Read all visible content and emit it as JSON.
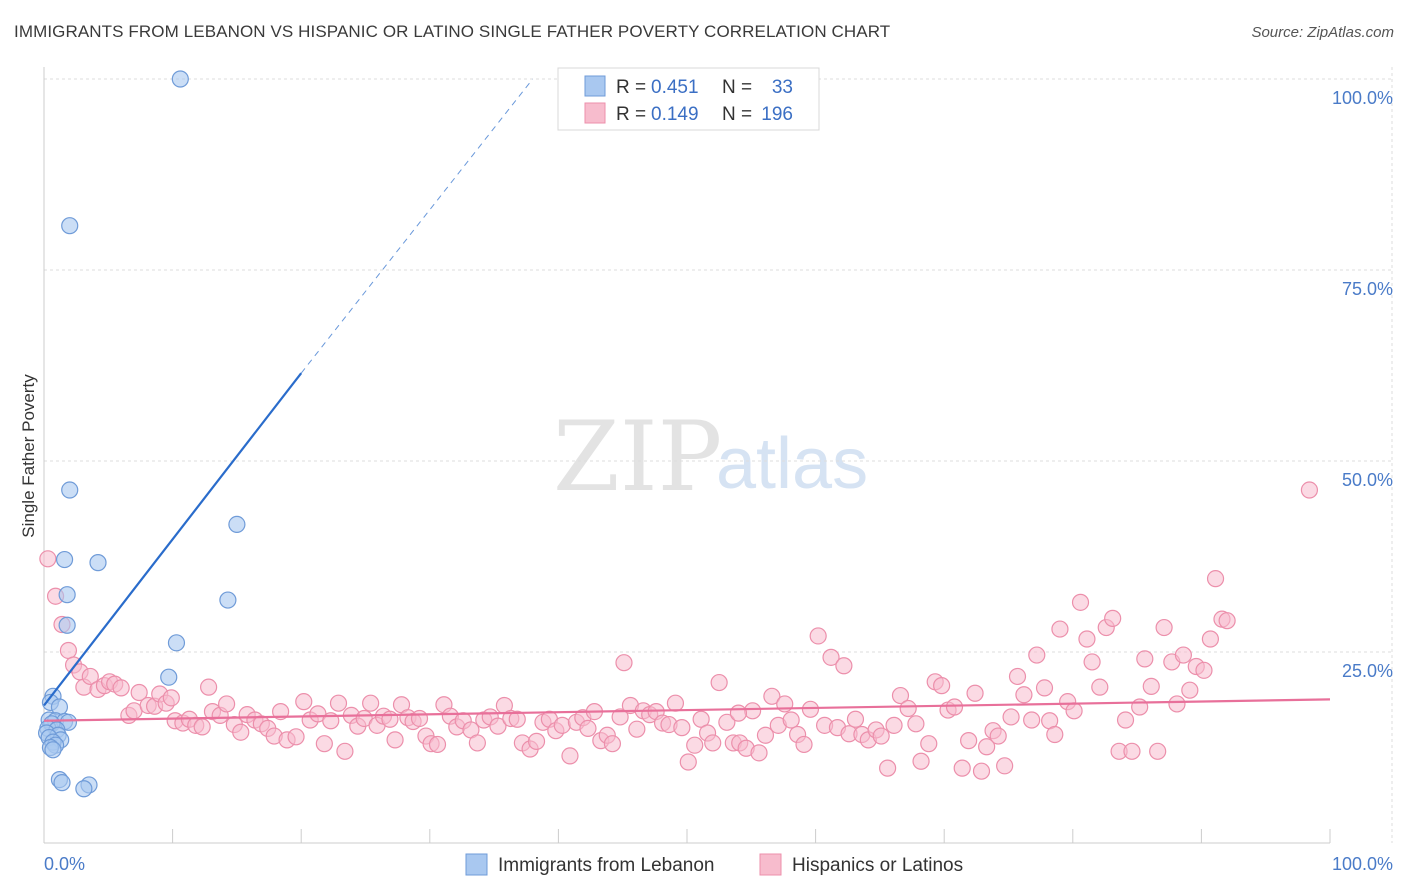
{
  "title": "IMMIGRANTS FROM LEBANON VS HISPANIC OR LATINO SINGLE FATHER POVERTY CORRELATION CHART",
  "source": "Source: ZipAtlas.com",
  "watermark": {
    "zip": "ZIP",
    "atlas": "atlas"
  },
  "colors": {
    "blue_fill": "#a9c8f0",
    "blue_stroke": "#6f9bd8",
    "blue_line": "#2a6ccb",
    "pink_fill": "#f7bccd",
    "pink_stroke": "#ec8fab",
    "pink_line": "#e8709a",
    "grid": "#dddddd",
    "axis_label": "#4a7bc8"
  },
  "legend": {
    "rows": [
      {
        "r_label": "R =",
        "r_value": "0.451",
        "n_label": "N =",
        "n_value": "33"
      },
      {
        "r_label": "R =",
        "r_value": "0.149",
        "n_label": "N =",
        "n_value": "196"
      }
    ]
  },
  "chart_data": {
    "type": "scatter",
    "title": "IMMIGRANTS FROM LEBANON VS HISPANIC OR LATINO SINGLE FATHER POVERTY CORRELATION CHART",
    "xlabel": "",
    "ylabel": "Single Father Poverty",
    "xlim": [
      0,
      100
    ],
    "ylim": [
      0,
      100
    ],
    "x_tick_labels": [
      "0.0%",
      "100.0%"
    ],
    "y_ticks": [
      25,
      50,
      75,
      100
    ],
    "y_tick_labels": [
      "25.0%",
      "50.0%",
      "75.0%",
      "100.0%"
    ],
    "grid": true,
    "series": [
      {
        "name": "Immigrants from Lebanon",
        "color": "blue",
        "r": 0.451,
        "n": 33,
        "trend": {
          "x0": 0.0,
          "y0": 18.0,
          "x1": 20.0,
          "y1": 61.5,
          "dash_to_x": 38.0,
          "dash_to_y": 100.0
        },
        "points": [
          [
            10.6,
            100.0
          ],
          [
            2.0,
            80.8
          ],
          [
            2.0,
            46.2
          ],
          [
            15.0,
            41.7
          ],
          [
            1.6,
            37.1
          ],
          [
            4.2,
            36.7
          ],
          [
            1.8,
            32.5
          ],
          [
            14.3,
            31.8
          ],
          [
            1.8,
            28.5
          ],
          [
            10.3,
            26.2
          ],
          [
            9.7,
            21.7
          ],
          [
            0.7,
            19.2
          ],
          [
            0.5,
            18.4
          ],
          [
            1.2,
            17.8
          ],
          [
            0.4,
            16.1
          ],
          [
            0.9,
            16.0
          ],
          [
            1.6,
            15.9
          ],
          [
            1.9,
            15.8
          ],
          [
            0.6,
            15.6
          ],
          [
            0.3,
            15.0
          ],
          [
            1.0,
            14.8
          ],
          [
            0.2,
            14.4
          ],
          [
            1.1,
            14.1
          ],
          [
            0.4,
            13.8
          ],
          [
            1.3,
            13.5
          ],
          [
            0.7,
            13.2
          ],
          [
            0.9,
            12.8
          ],
          [
            0.5,
            12.5
          ],
          [
            0.7,
            12.2
          ],
          [
            1.2,
            8.3
          ],
          [
            1.4,
            7.9
          ],
          [
            3.5,
            7.6
          ],
          [
            3.1,
            7.1
          ]
        ]
      },
      {
        "name": "Hispanics or Latinos",
        "color": "pink",
        "r": 0.149,
        "n": 196,
        "trend": {
          "x0": 0.0,
          "y0": 16.0,
          "x1": 100.0,
          "y1": 18.8
        },
        "points": [
          [
            0.3,
            37.2
          ],
          [
            0.9,
            32.3
          ],
          [
            1.4,
            28.6
          ],
          [
            1.9,
            25.2
          ],
          [
            2.3,
            23.3
          ],
          [
            2.8,
            22.4
          ],
          [
            3.1,
            20.4
          ],
          [
            3.6,
            21.8
          ],
          [
            4.2,
            20.1
          ],
          [
            4.7,
            20.6
          ],
          [
            5.1,
            21.1
          ],
          [
            5.5,
            20.8
          ],
          [
            6.0,
            20.3
          ],
          [
            6.6,
            16.7
          ],
          [
            7.0,
            17.3
          ],
          [
            7.4,
            19.7
          ],
          [
            8.1,
            18.0
          ],
          [
            8.6,
            17.9
          ],
          [
            9.0,
            19.5
          ],
          [
            9.5,
            18.3
          ],
          [
            9.9,
            19.0
          ],
          [
            10.2,
            16.0
          ],
          [
            10.8,
            15.7
          ],
          [
            11.3,
            16.2
          ],
          [
            11.8,
            15.4
          ],
          [
            12.3,
            15.2
          ],
          [
            12.8,
            20.4
          ],
          [
            13.1,
            17.2
          ],
          [
            13.7,
            16.7
          ],
          [
            14.2,
            18.2
          ],
          [
            14.8,
            15.5
          ],
          [
            15.3,
            14.5
          ],
          [
            15.8,
            16.8
          ],
          [
            16.4,
            16.1
          ],
          [
            16.9,
            15.6
          ],
          [
            17.4,
            15.0
          ],
          [
            17.9,
            14.0
          ],
          [
            18.4,
            17.2
          ],
          [
            18.9,
            13.5
          ],
          [
            19.6,
            13.9
          ],
          [
            20.2,
            18.5
          ],
          [
            20.7,
            16.1
          ],
          [
            21.3,
            16.9
          ],
          [
            21.8,
            13.0
          ],
          [
            22.3,
            16.0
          ],
          [
            22.9,
            18.3
          ],
          [
            23.4,
            12.0
          ],
          [
            23.9,
            16.7
          ],
          [
            24.4,
            15.3
          ],
          [
            24.9,
            16.3
          ],
          [
            25.4,
            18.3
          ],
          [
            25.9,
            15.4
          ],
          [
            26.4,
            16.6
          ],
          [
            26.9,
            16.2
          ],
          [
            27.3,
            13.5
          ],
          [
            27.8,
            18.1
          ],
          [
            28.3,
            16.4
          ],
          [
            28.7,
            15.9
          ],
          [
            29.2,
            16.3
          ],
          [
            29.7,
            14.0
          ],
          [
            30.1,
            13.0
          ],
          [
            30.6,
            12.9
          ],
          [
            31.1,
            18.1
          ],
          [
            31.6,
            16.6
          ],
          [
            32.1,
            15.2
          ],
          [
            32.6,
            16.0
          ],
          [
            33.2,
            14.8
          ],
          [
            33.7,
            13.1
          ],
          [
            34.2,
            16.1
          ],
          [
            34.7,
            16.5
          ],
          [
            35.3,
            15.3
          ],
          [
            35.8,
            18.0
          ],
          [
            36.3,
            16.3
          ],
          [
            36.8,
            16.2
          ],
          [
            37.2,
            13.1
          ],
          [
            37.8,
            12.3
          ],
          [
            38.3,
            13.3
          ],
          [
            38.8,
            15.8
          ],
          [
            39.3,
            16.2
          ],
          [
            39.8,
            14.7
          ],
          [
            40.3,
            15.4
          ],
          [
            40.9,
            11.4
          ],
          [
            41.4,
            15.8
          ],
          [
            41.9,
            16.4
          ],
          [
            42.3,
            15.0
          ],
          [
            42.8,
            17.2
          ],
          [
            43.3,
            13.4
          ],
          [
            43.8,
            14.1
          ],
          [
            44.2,
            13.0
          ],
          [
            44.8,
            16.5
          ],
          [
            45.1,
            23.6
          ],
          [
            45.6,
            18.0
          ],
          [
            46.1,
            14.9
          ],
          [
            46.6,
            17.3
          ],
          [
            47.1,
            16.8
          ],
          [
            47.6,
            17.2
          ],
          [
            48.1,
            15.7
          ],
          [
            48.6,
            15.5
          ],
          [
            49.1,
            18.3
          ],
          [
            49.6,
            15.1
          ],
          [
            50.1,
            10.6
          ],
          [
            50.6,
            12.8
          ],
          [
            51.1,
            16.2
          ],
          [
            51.6,
            14.4
          ],
          [
            52.0,
            13.1
          ],
          [
            52.5,
            21.0
          ],
          [
            53.1,
            15.8
          ],
          [
            53.6,
            13.1
          ],
          [
            54.1,
            13.1
          ],
          [
            54.6,
            12.4
          ],
          [
            55.1,
            17.3
          ],
          [
            55.6,
            11.8
          ],
          [
            56.1,
            14.1
          ],
          [
            56.6,
            19.2
          ],
          [
            57.1,
            15.4
          ],
          [
            57.6,
            18.2
          ],
          [
            58.1,
            16.1
          ],
          [
            58.6,
            14.2
          ],
          [
            59.1,
            12.9
          ],
          [
            59.6,
            17.5
          ],
          [
            60.2,
            27.1
          ],
          [
            60.7,
            15.4
          ],
          [
            61.2,
            24.3
          ],
          [
            61.7,
            15.1
          ],
          [
            62.2,
            23.2
          ],
          [
            62.6,
            14.3
          ],
          [
            63.1,
            16.2
          ],
          [
            63.6,
            14.2
          ],
          [
            64.1,
            13.5
          ],
          [
            64.7,
            14.8
          ],
          [
            65.1,
            14.0
          ],
          [
            65.6,
            9.8
          ],
          [
            66.1,
            15.4
          ],
          [
            66.6,
            19.3
          ],
          [
            67.2,
            17.6
          ],
          [
            67.8,
            15.6
          ],
          [
            68.2,
            10.7
          ],
          [
            68.8,
            13.0
          ],
          [
            69.3,
            21.1
          ],
          [
            69.8,
            20.6
          ],
          [
            70.3,
            17.4
          ],
          [
            70.8,
            17.8
          ],
          [
            71.4,
            9.8
          ],
          [
            71.9,
            13.4
          ],
          [
            72.4,
            19.6
          ],
          [
            72.9,
            9.4
          ],
          [
            73.3,
            12.6
          ],
          [
            73.8,
            14.7
          ],
          [
            74.2,
            14.0
          ],
          [
            74.7,
            10.1
          ],
          [
            75.2,
            16.5
          ],
          [
            75.7,
            21.8
          ],
          [
            76.2,
            19.4
          ],
          [
            76.8,
            16.1
          ],
          [
            77.2,
            24.6
          ],
          [
            77.8,
            20.3
          ],
          [
            78.2,
            16.0
          ],
          [
            78.6,
            14.2
          ],
          [
            79.0,
            28.0
          ],
          [
            79.6,
            18.5
          ],
          [
            80.1,
            17.3
          ],
          [
            80.6,
            31.5
          ],
          [
            81.1,
            26.7
          ],
          [
            81.5,
            23.7
          ],
          [
            82.1,
            20.4
          ],
          [
            82.6,
            28.2
          ],
          [
            83.1,
            29.4
          ],
          [
            83.6,
            12.0
          ],
          [
            84.1,
            16.1
          ],
          [
            84.6,
            12.0
          ],
          [
            85.2,
            17.8
          ],
          [
            85.6,
            24.1
          ],
          [
            86.1,
            20.5
          ],
          [
            86.6,
            12.0
          ],
          [
            87.1,
            28.2
          ],
          [
            87.7,
            23.7
          ],
          [
            88.1,
            18.2
          ],
          [
            88.6,
            24.6
          ],
          [
            89.1,
            20.0
          ],
          [
            89.6,
            23.1
          ],
          [
            90.2,
            22.6
          ],
          [
            90.7,
            26.7
          ],
          [
            91.1,
            34.6
          ],
          [
            91.6,
            29.3
          ],
          [
            92.0,
            29.1
          ],
          [
            98.4,
            46.2
          ],
          [
            54.0,
            17.0
          ]
        ]
      }
    ]
  },
  "bottom_legend": {
    "items": [
      {
        "label": "Immigrants from Lebanon"
      },
      {
        "label": "Hispanics or Latinos"
      }
    ]
  }
}
